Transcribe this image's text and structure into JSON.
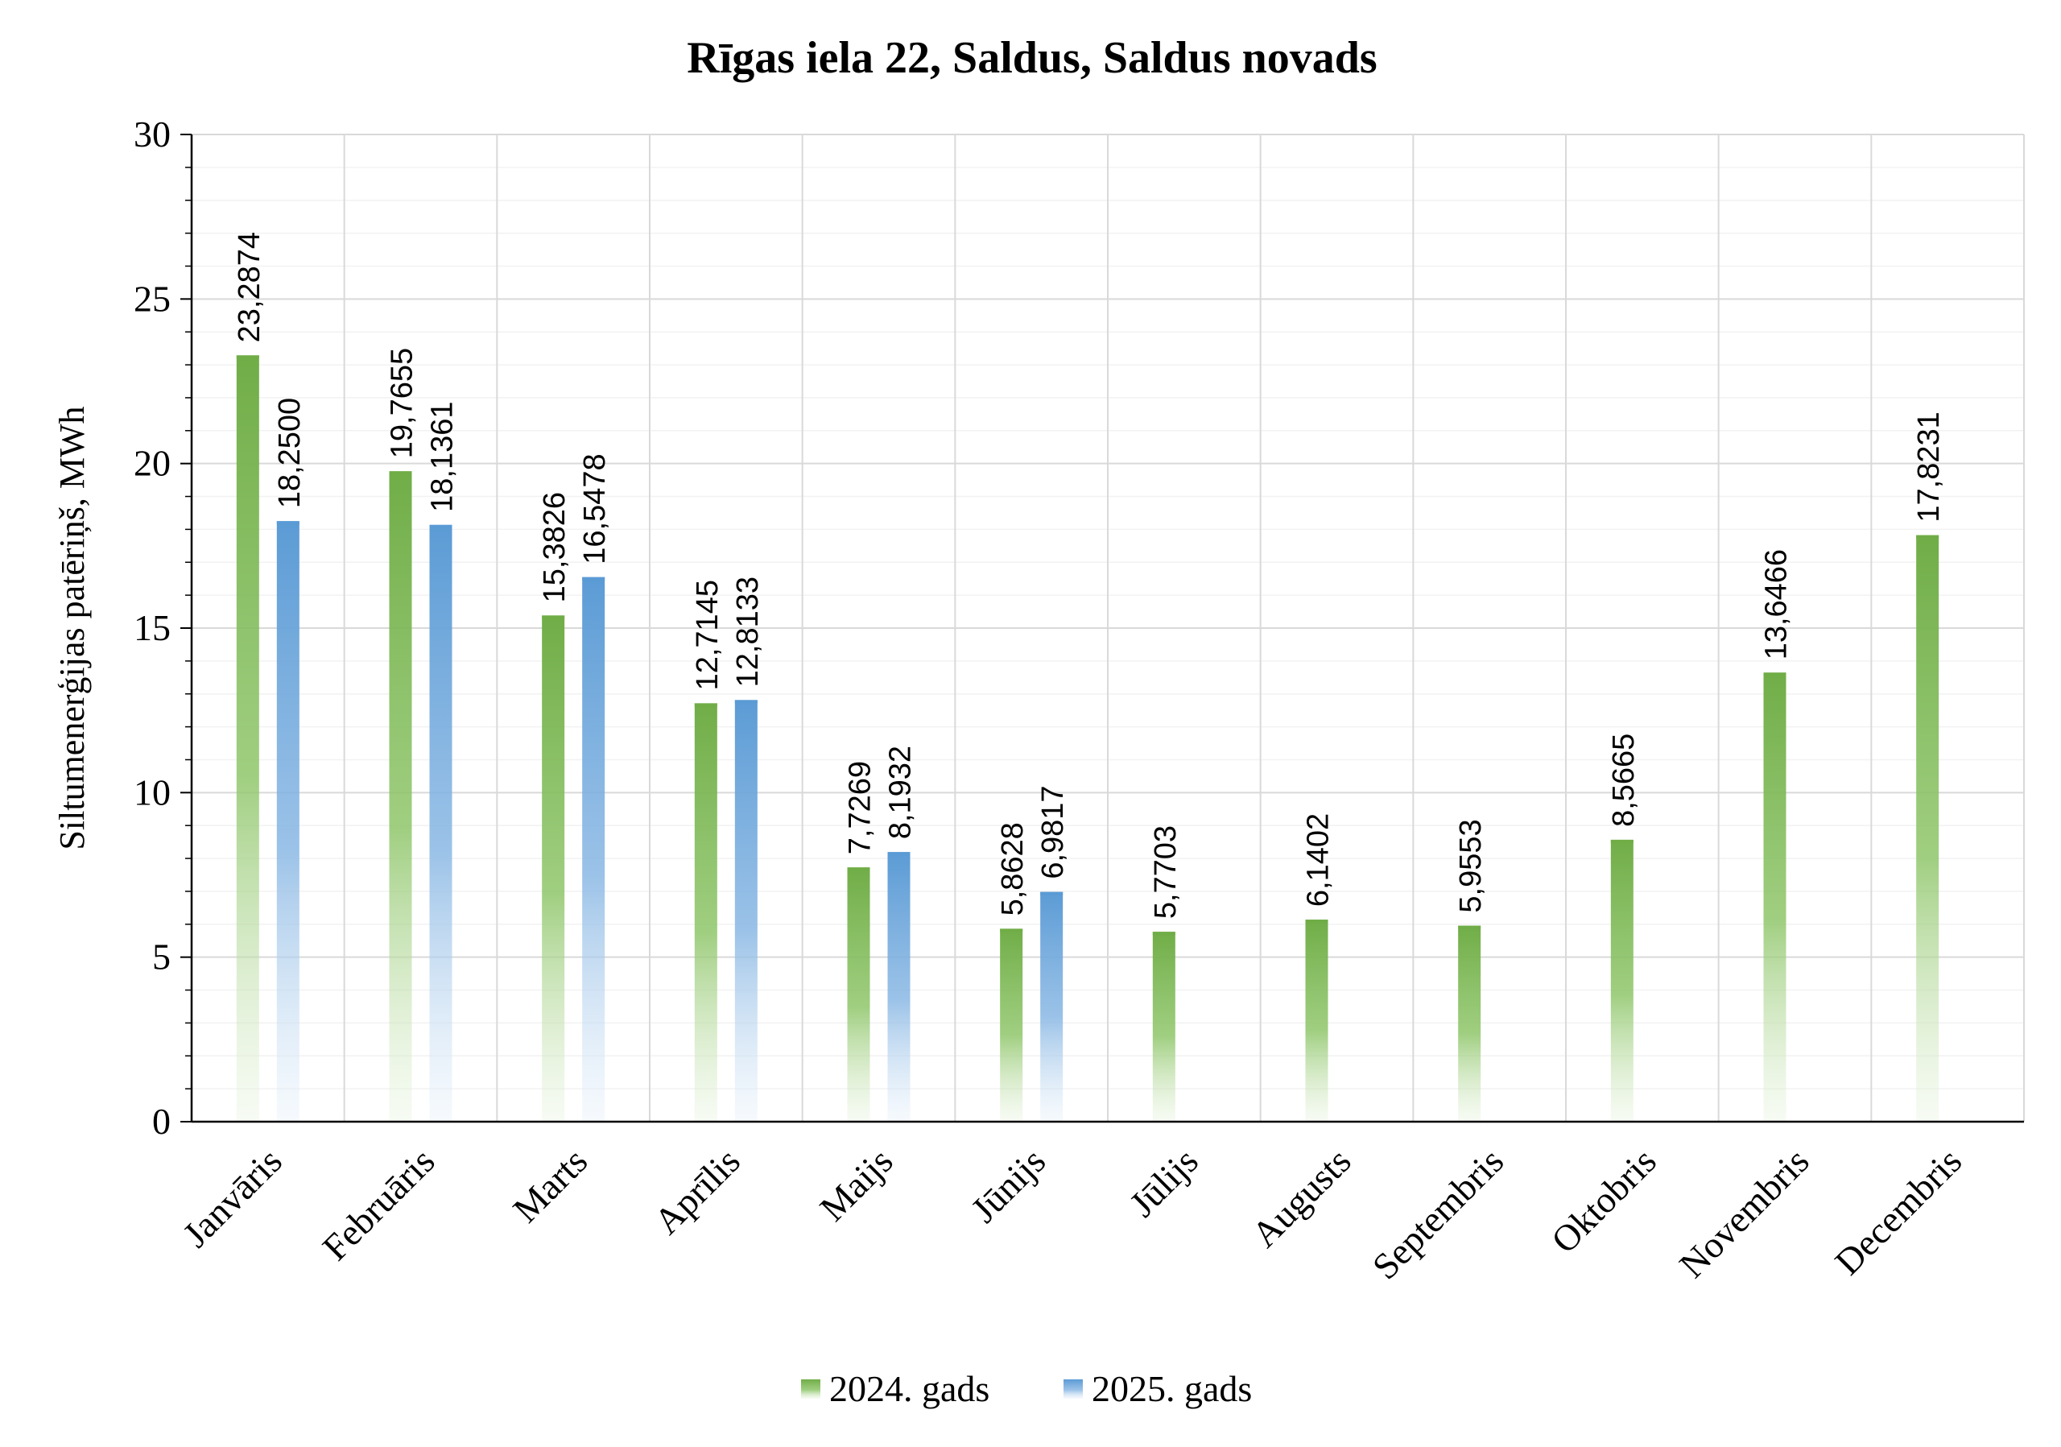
{
  "chart_data": {
    "type": "bar",
    "title": "Rīgas iela 22, Saldus, Saldus novads",
    "xlabel": "",
    "ylabel": "Siltumenerģijas patēriņš, MWh",
    "ylim": [
      0,
      30
    ],
    "yticks": [
      "0",
      "5",
      "10",
      "15",
      "20",
      "25",
      "30"
    ],
    "grid": true,
    "legend_position": "bottom",
    "categories": [
      "Janvāris",
      "Februāris",
      "Marts",
      "Aprīlis",
      "Maijs",
      "Jūnijs",
      "Jūlijs",
      "Augusts",
      "Septembris",
      "Oktobris",
      "Novembris",
      "Decembris"
    ],
    "series": [
      {
        "name": "2024. gads",
        "color": "#70ad47",
        "values": [
          23.2874,
          19.7655,
          15.3826,
          12.7145,
          7.7269,
          5.8628,
          5.7703,
          6.1402,
          5.9553,
          8.5665,
          13.6466,
          17.8231
        ],
        "labels": [
          "23,2874",
          "19,7655",
          "15,3826",
          "12,7145",
          "7,7269",
          "5,8628",
          "5,7703",
          "6,1402",
          "5,9553",
          "8,5665",
          "13,6466",
          "17,8231"
        ]
      },
      {
        "name": "2025. gads",
        "color": "#5b9bd5",
        "values": [
          18.25,
          18.1361,
          16.5478,
          12.8133,
          8.1932,
          6.9817,
          null,
          null,
          null,
          null,
          null,
          null
        ],
        "labels": [
          "18,2500",
          "18,1361",
          "16,5478",
          "12,8133",
          "8,1932",
          "6,9817",
          "",
          "",
          "",
          "",
          "",
          ""
        ]
      }
    ]
  }
}
